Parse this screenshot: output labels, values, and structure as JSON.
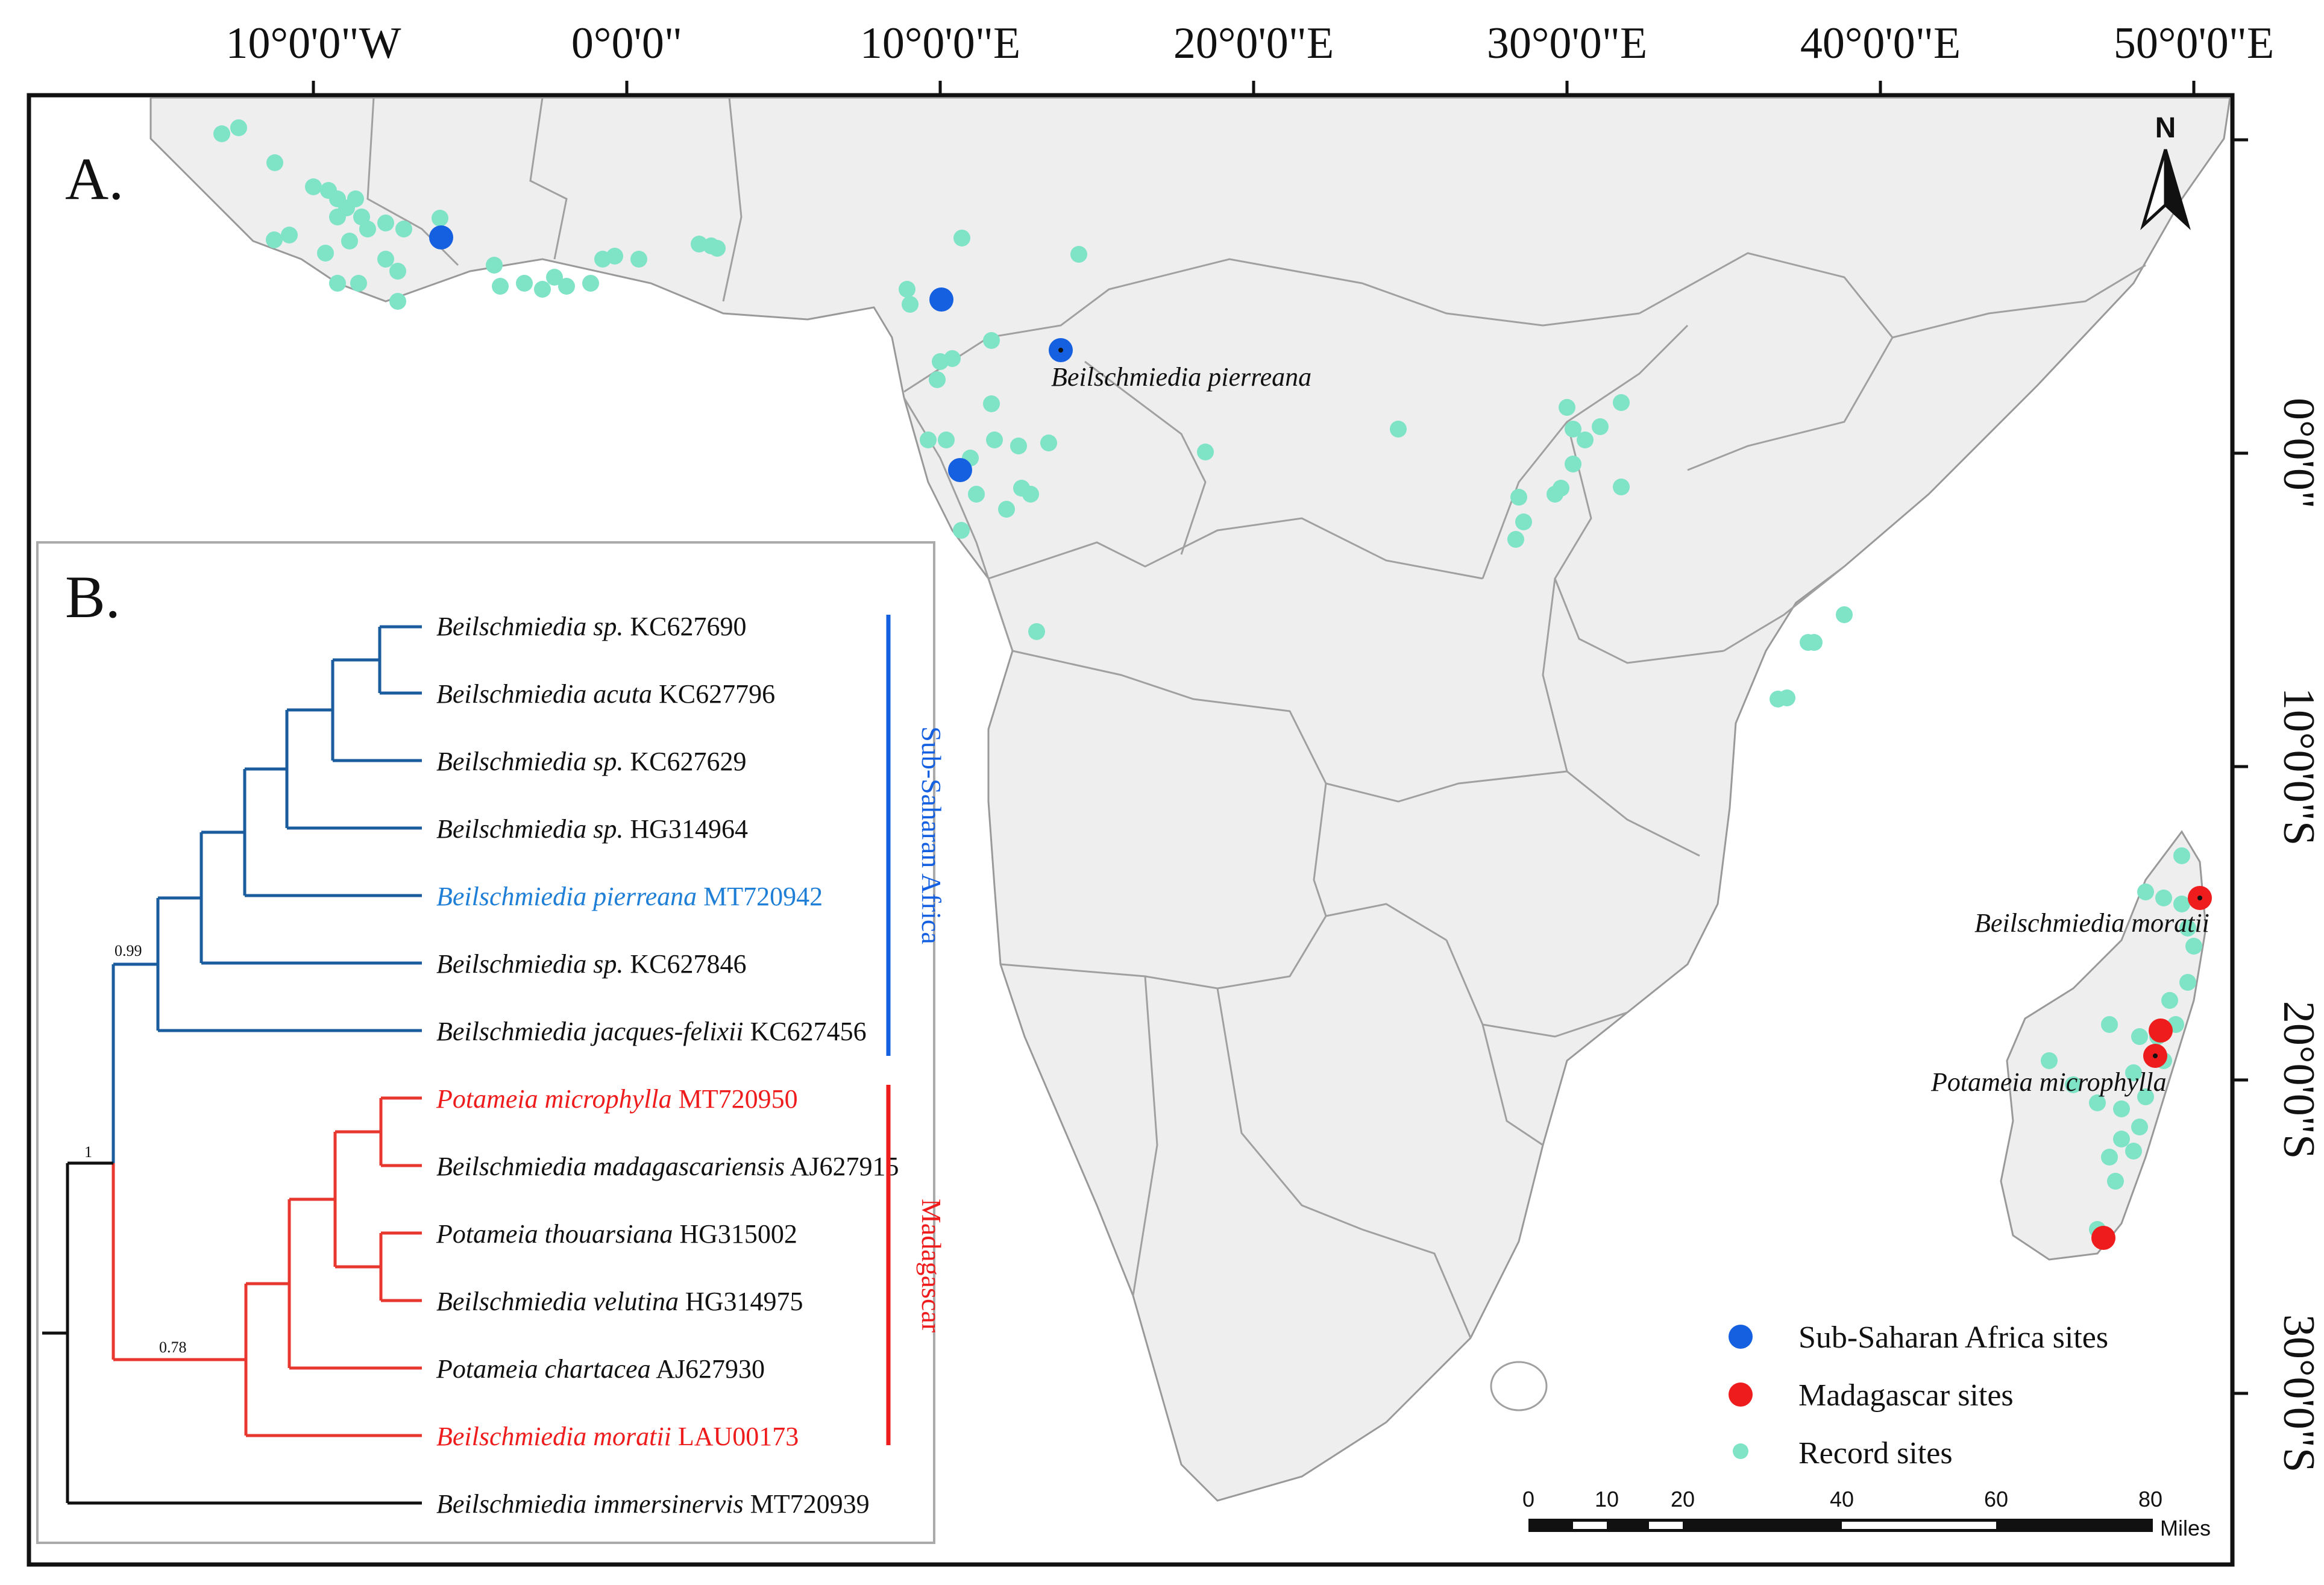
{
  "axes": {
    "top_longitudes": [
      "10°0'0\"W",
      "0°0'0\"",
      "10°0'0\"E",
      "20°0'0\"E",
      "30°0'0\"E",
      "40°0'0\"E",
      "50°0'0\"E"
    ],
    "right_latitudes": [
      "0°0'0\"",
      "10°0'0\"S",
      "20°0'0\"S",
      "30°0'0\"S"
    ]
  },
  "panel_a": {
    "label": "A.",
    "north_letter": "N",
    "callouts": {
      "pierreana": "Beilschmiedia pierreana",
      "moratii": "Beilschmiedia moratii",
      "microphylla": "Potameia microphylla"
    }
  },
  "legend": {
    "items": [
      {
        "label": "Sub-Saharan Africa sites",
        "color": "#1560e0"
      },
      {
        "label": "Madagascar sites",
        "color": "#ee1c1c"
      },
      {
        "label": "Record sites",
        "color": "#7fe3c6"
      }
    ]
  },
  "scale_bar": {
    "ticks": [
      "0",
      "10",
      "20",
      "40",
      "60",
      "80"
    ],
    "unit": "Miles"
  },
  "panel_b": {
    "label": "B.",
    "colors": {
      "sub_saharan": "#1a5c9e",
      "madagascar": "#e8372f",
      "outgroup": "#111111",
      "highlight_blue": "#1f7fd6",
      "highlight_red": "#ee1c1c"
    },
    "taxa": [
      {
        "genus": "Beilschmiedia",
        "epithet": "sp.",
        "accession": "KC627690"
      },
      {
        "genus": "Beilschmiedia",
        "epithet": "acuta",
        "accession": "KC627796"
      },
      {
        "genus": "Beilschmiedia",
        "epithet": "sp.",
        "accession": "KC627629"
      },
      {
        "genus": "Beilschmiedia",
        "epithet": "sp.",
        "accession": "HG314964"
      },
      {
        "genus": "Beilschmiedia",
        "epithet": "pierreana",
        "accession": "MT720942"
      },
      {
        "genus": "Beilschmiedia",
        "epithet": "sp.",
        "accession": "KC627846"
      },
      {
        "genus": "Beilschmiedia",
        "epithet": "jacques-felixii",
        "accession": "KC627456"
      },
      {
        "genus": "Potameia",
        "epithet": "microphylla",
        "accession": "MT720950"
      },
      {
        "genus": "Beilschmiedia",
        "epithet": "madagascariensis",
        "accession": "AJ627915"
      },
      {
        "genus": "Potameia",
        "epithet": "thouarsiana",
        "accession": "HG315002"
      },
      {
        "genus": "Beilschmiedia",
        "epithet": "velutina",
        "accession": "HG314975"
      },
      {
        "genus": "Potameia",
        "epithet": "chartacea",
        "accession": "AJ627930"
      },
      {
        "genus": "Beilschmiedia",
        "epithet": "moratii",
        "accession": "LAU00173"
      },
      {
        "genus": "Beilschmiedia",
        "epithet": "immersinervis",
        "accession": "MT720939"
      }
    ],
    "support_values": [
      "0.99",
      "1",
      "0.78"
    ],
    "clades": {
      "sub_saharan": "Sub-Saharan Africa",
      "madagascar": "Madagascar"
    }
  }
}
